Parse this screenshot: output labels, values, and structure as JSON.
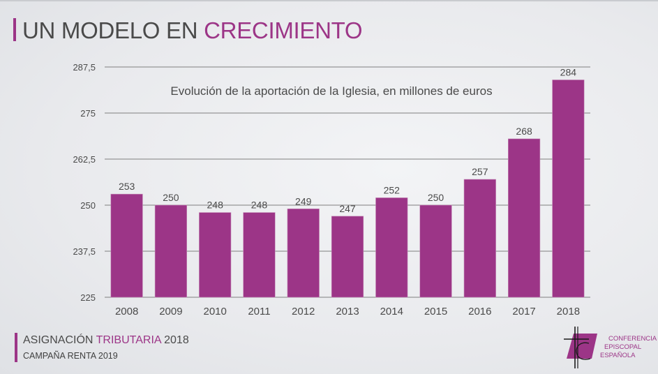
{
  "header": {
    "title_plain": "UN MODELO EN ",
    "title_accent": "CRECIMIENTO"
  },
  "footer": {
    "line1_plain": "ASIGNACIÓN ",
    "line1_accent": "TRIBUTARIA",
    "line1_year": " 2018",
    "line2": "CAMPAÑA RENTA 2019"
  },
  "logo": {
    "icon": "cross-c-parallelogram-logo-icon",
    "lines": [
      "CONFERENCIA",
      "EPISCOPAL",
      "ESPAÑOLA"
    ]
  },
  "colors": {
    "accent": "#9c3587",
    "bar": "#9c3587",
    "text": "#4a4a4a",
    "grid": "#7f7f7f"
  },
  "chart_data": {
    "type": "bar",
    "title": "Evolución de la aportación de la Iglesia, en millones de euros",
    "xlabel": "",
    "ylabel": "",
    "categories": [
      "2008",
      "2009",
      "2010",
      "2011",
      "2012",
      "2013",
      "2014",
      "2015",
      "2016",
      "2017",
      "2018"
    ],
    "values": [
      253,
      250,
      248,
      248,
      249,
      247,
      252,
      250,
      257,
      268,
      284
    ],
    "data_labels": [
      "253",
      "250",
      "248",
      "248",
      "249",
      "247",
      "252",
      "250",
      "257",
      "268",
      "284"
    ],
    "ylim": [
      225,
      287.5
    ],
    "yticks": [
      225,
      237.5,
      250,
      262.5,
      275,
      287.5
    ],
    "ytick_labels": [
      "225",
      "237,5",
      "250",
      "262,5",
      "275",
      "287,5"
    ],
    "grid": true,
    "legend": "none"
  }
}
